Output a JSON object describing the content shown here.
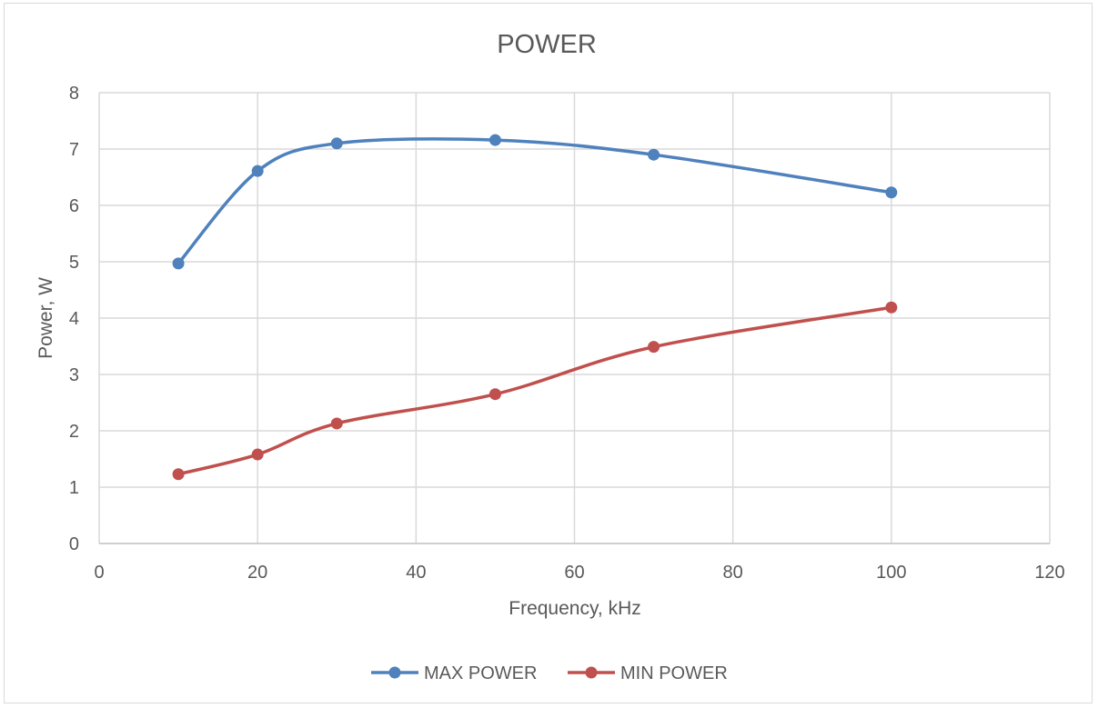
{
  "chart_data": {
    "type": "line",
    "title": "POWER",
    "xlabel": "Frequency, kHz",
    "ylabel": "Power, W",
    "xlim": [
      0,
      120
    ],
    "ylim": [
      0,
      8
    ],
    "x_ticks": [
      "0",
      "20",
      "40",
      "60",
      "80",
      "100",
      "120"
    ],
    "y_ticks": [
      "0",
      "1",
      "2",
      "3",
      "4",
      "5",
      "6",
      "7",
      "8"
    ],
    "grid": true,
    "smooth": true,
    "legend_position": "bottom",
    "series": [
      {
        "name": "MAX POWER",
        "color": "#4f81bd",
        "points": [
          {
            "x": 10,
            "y": 4.97
          },
          {
            "x": 20,
            "y": 6.61
          },
          {
            "x": 30,
            "y": 7.1
          },
          {
            "x": 50,
            "y": 7.16
          },
          {
            "x": 70,
            "y": 6.9
          },
          {
            "x": 100,
            "y": 6.23
          }
        ]
      },
      {
        "name": "MIN POWER",
        "color": "#c0504d",
        "points": [
          {
            "x": 10,
            "y": 1.23
          },
          {
            "x": 20,
            "y": 1.58
          },
          {
            "x": 30,
            "y": 2.13
          },
          {
            "x": 50,
            "y": 2.65
          },
          {
            "x": 70,
            "y": 3.49
          },
          {
            "x": 100,
            "y": 4.19
          }
        ]
      }
    ]
  }
}
